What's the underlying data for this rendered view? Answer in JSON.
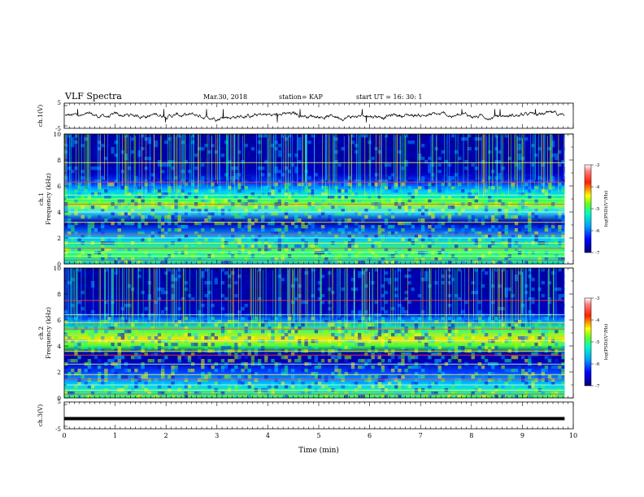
{
  "header": {
    "title": "VLF Spectra",
    "date": "Mar.30, 2018",
    "station": "station= KAP",
    "start": "start  UT  =   16: 30: 1"
  },
  "chart_data": [
    {
      "type": "line",
      "panel": "ch1-waveform",
      "ylabel": "ch.1(V)",
      "ylim": [
        -5,
        5
      ],
      "yticks": [
        "5",
        "-5"
      ],
      "xlim": [
        0,
        10
      ],
      "color": "#000000"
    },
    {
      "type": "heatmap",
      "panel": "ch1-spectrogram",
      "ylabel_top": "ch.1",
      "ylabel": "Frequency (kHz)",
      "ylim": [
        0,
        10
      ],
      "yticks": [
        "0",
        "2",
        "4",
        "6",
        "8",
        "10"
      ],
      "xlim": [
        0,
        10
      ],
      "data_xmax": 9.83,
      "colorbar": {
        "label": "log(PSD)(V²/Hz)",
        "range": [
          -7,
          -3
        ],
        "ticks": [
          "-3",
          "-4",
          "-5",
          "-6",
          "-7"
        ]
      },
      "bands_khz": [
        0.3,
        0.6,
        0.9,
        1.2,
        1.6,
        2.0,
        2.3,
        3.2,
        4.0,
        4.6,
        5.0,
        5.3,
        6.3,
        7.8
      ],
      "colormap": [
        "#00008b",
        "#0000ff",
        "#00bfff",
        "#00ff80",
        "#ffff00",
        "#ff8000",
        "#ff0000",
        "#ffffff"
      ]
    },
    {
      "type": "heatmap",
      "panel": "ch2-spectrogram",
      "ylabel_top": "ch.2",
      "ylabel": "Frequency (kHz)",
      "ylim": [
        0,
        10
      ],
      "yticks": [
        "0",
        "2",
        "4",
        "6",
        "8",
        "10"
      ],
      "xlim": [
        0,
        10
      ],
      "data_xmax": 9.83,
      "colorbar": {
        "label": "log(PSD)(V²/Hz)",
        "range": [
          -7,
          -3
        ],
        "ticks": [
          "-3",
          "-4",
          "-5",
          "-6",
          "-7"
        ]
      },
      "bands_khz": [
        0.3,
        0.6,
        1.0,
        1.4,
        1.8,
        2.6,
        3.3,
        3.6,
        4.4,
        5.3,
        5.8,
        6.4,
        7.5
      ]
    },
    {
      "type": "line",
      "panel": "ch3-waveform",
      "ylabel": "ch.3(V)",
      "ylim": [
        -5,
        5
      ],
      "yticks": [
        "5",
        "-5"
      ],
      "xlim": [
        0,
        10
      ],
      "constant_value": -1.2,
      "color": "#000000"
    }
  ],
  "xaxis": {
    "label": "Time  (min)",
    "ticks": [
      "0",
      "1",
      "2",
      "3",
      "4",
      "5",
      "6",
      "7",
      "8",
      "9",
      "10"
    ],
    "range": [
      0,
      10
    ]
  }
}
